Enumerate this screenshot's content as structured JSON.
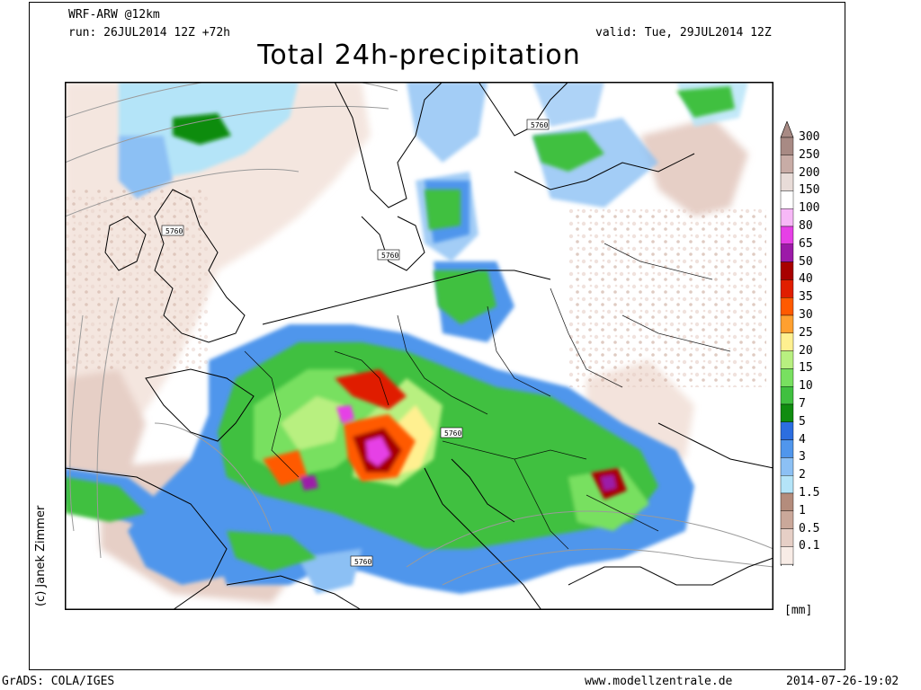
{
  "header": {
    "model": "WRF-ARW @12km",
    "run": "run: 26JUL2014 12Z +72h",
    "valid": "valid: Tue, 29JUL2014 12Z",
    "title": "Total 24h-precipitation"
  },
  "map": {
    "contour_label": "5760",
    "contour_labels_count": 5,
    "region": "Europe",
    "credit": "(c) Janek Zimmer"
  },
  "legend": {
    "unit": "[mm]",
    "levels": [
      {
        "label": "300",
        "color": "#a88a84"
      },
      {
        "label": "250",
        "color": "#c8aca6"
      },
      {
        "label": "200",
        "color": "#e8dcd8"
      },
      {
        "label": "150",
        "color": "#ffffff"
      },
      {
        "label": "100",
        "color": "#f7b8f7"
      },
      {
        "label": "80",
        "color": "#e640e6"
      },
      {
        "label": "65",
        "color": "#9c1aa8"
      },
      {
        "label": "50",
        "color": "#a80000"
      },
      {
        "label": "40",
        "color": "#e01e00"
      },
      {
        "label": "35",
        "color": "#ff5a00"
      },
      {
        "label": "30",
        "color": "#ffa030"
      },
      {
        "label": "25",
        "color": "#fff090"
      },
      {
        "label": "20",
        "color": "#b8f080"
      },
      {
        "label": "15",
        "color": "#78e060"
      },
      {
        "label": "10",
        "color": "#40c040"
      },
      {
        "label": "7",
        "color": "#108c10"
      },
      {
        "label": "5",
        "color": "#2c6ee0"
      },
      {
        "label": "4",
        "color": "#5096ec"
      },
      {
        "label": "3",
        "color": "#8cc0f4"
      },
      {
        "label": "2",
        "color": "#b4e4f8"
      },
      {
        "label": "1.5",
        "color": "#b48c7c"
      },
      {
        "label": "1",
        "color": "#caa89a"
      },
      {
        "label": "0.5",
        "color": "#e6cfc6"
      },
      {
        "label": "0.1",
        "color": "#f8ece6"
      }
    ]
  },
  "footer": {
    "left": "GrADS: COLA/IGES",
    "center": "www.modellzentrale.de",
    "right": "2014-07-26-19:02"
  }
}
